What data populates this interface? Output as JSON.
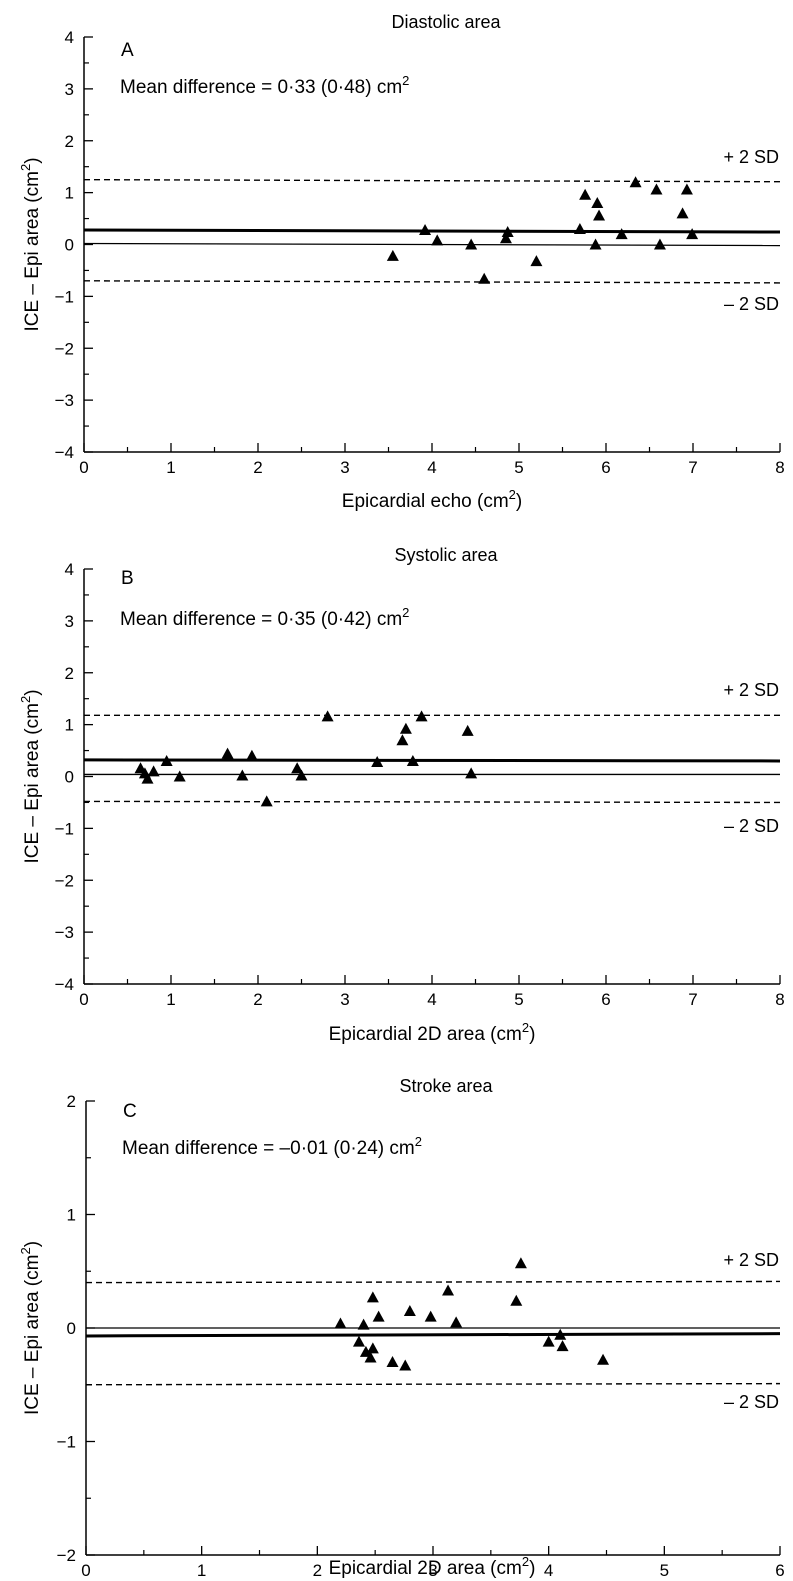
{
  "chart_data": [
    {
      "type": "scatter",
      "panel_letter": "A",
      "title": "Diastolic area",
      "annotation": "Mean difference = 0·33 (0·48) cm",
      "annotation_sup": "2",
      "xlabel": "Epicardial echo (cm",
      "xlabel_sup": "2",
      "xlabel_end": ")",
      "ylabel": "ICE – Epi area (cm",
      "ylabel_sup": "2",
      "ylabel_end": ")",
      "xlim": [
        0,
        8
      ],
      "ylim": [
        -4,
        4
      ],
      "xticks": [
        0,
        1,
        2,
        3,
        4,
        5,
        6,
        7,
        8
      ],
      "yticks": [
        -4,
        -3,
        -2,
        -1,
        0,
        1,
        2,
        3,
        4
      ],
      "x_tick_labels": [
        "0",
        "1",
        "2",
        "3",
        "4",
        "5",
        "6",
        "7",
        "8"
      ],
      "y_tick_labels": [
        "−4",
        "−3",
        "−2",
        "−1",
        "0",
        "1",
        "2",
        "3",
        "4"
      ],
      "mean_line": [
        0.28,
        0.24
      ],
      "zero_line": [
        0.02,
        -0.02
      ],
      "upper_sd_line": [
        1.25,
        1.21
      ],
      "lower_sd_line": [
        -0.7,
        -0.74
      ],
      "upper_sd_label": "+ 2 SD",
      "lower_sd_label": "– 2 SD",
      "points": [
        {
          "x": 3.55,
          "y": -0.22
        },
        {
          "x": 3.92,
          "y": 0.28
        },
        {
          "x": 4.06,
          "y": 0.08
        },
        {
          "x": 4.45,
          "y": 0.0
        },
        {
          "x": 4.6,
          "y": -0.66
        },
        {
          "x": 4.85,
          "y": 0.12
        },
        {
          "x": 4.87,
          "y": 0.24
        },
        {
          "x": 5.2,
          "y": -0.32
        },
        {
          "x": 5.7,
          "y": 0.3
        },
        {
          "x": 5.76,
          "y": 0.96
        },
        {
          "x": 5.88,
          "y": 0.0
        },
        {
          "x": 5.9,
          "y": 0.8
        },
        {
          "x": 5.92,
          "y": 0.56
        },
        {
          "x": 6.18,
          "y": 0.2
        },
        {
          "x": 6.34,
          "y": 1.2
        },
        {
          "x": 6.58,
          "y": 1.06
        },
        {
          "x": 6.62,
          "y": 0.0
        },
        {
          "x": 6.88,
          "y": 0.6
        },
        {
          "x": 6.93,
          "y": 1.06
        },
        {
          "x": 6.99,
          "y": 0.2
        }
      ]
    },
    {
      "type": "scatter",
      "panel_letter": "B",
      "title": "Systolic area",
      "annotation": "Mean difference = 0·35 (0·42) cm",
      "annotation_sup": "2",
      "xlabel": "Epicardial 2D area (cm",
      "xlabel_sup": "2",
      "xlabel_end": ")",
      "ylabel": "ICE – Epi area (cm",
      "ylabel_sup": "2",
      "ylabel_end": ")",
      "xlim": [
        0,
        8
      ],
      "ylim": [
        -4,
        4
      ],
      "xticks": [
        0,
        1,
        2,
        3,
        4,
        5,
        6,
        7,
        8
      ],
      "yticks": [
        -4,
        -3,
        -2,
        -1,
        0,
        1,
        2,
        3,
        4
      ],
      "x_tick_labels": [
        "0",
        "1",
        "2",
        "3",
        "4",
        "5",
        "6",
        "7",
        "8"
      ],
      "y_tick_labels": [
        "−4",
        "−3",
        "−2",
        "−1",
        "0",
        "1",
        "2",
        "3",
        "4"
      ],
      "mean_line": [
        0.32,
        0.3
      ],
      "zero_line": [
        0.04,
        0.04
      ],
      "upper_sd_line": [
        1.18,
        1.18
      ],
      "lower_sd_line": [
        -0.48,
        -0.5
      ],
      "upper_sd_label": "+ 2 SD",
      "lower_sd_label": "– 2 SD",
      "points": [
        {
          "x": 0.65,
          "y": 0.16
        },
        {
          "x": 0.7,
          "y": 0.06
        },
        {
          "x": 0.73,
          "y": -0.04
        },
        {
          "x": 0.8,
          "y": 0.1
        },
        {
          "x": 0.95,
          "y": 0.3
        },
        {
          "x": 1.1,
          "y": 0.0
        },
        {
          "x": 1.65,
          "y": 0.44
        },
        {
          "x": 1.66,
          "y": 0.4
        },
        {
          "x": 1.82,
          "y": 0.02
        },
        {
          "x": 1.93,
          "y": 0.4
        },
        {
          "x": 2.1,
          "y": -0.48
        },
        {
          "x": 2.45,
          "y": 0.16
        },
        {
          "x": 2.5,
          "y": 0.02
        },
        {
          "x": 2.8,
          "y": 1.16
        },
        {
          "x": 3.37,
          "y": 0.28
        },
        {
          "x": 3.66,
          "y": 0.7
        },
        {
          "x": 3.7,
          "y": 0.92
        },
        {
          "x": 3.78,
          "y": 0.3
        },
        {
          "x": 3.88,
          "y": 1.16
        },
        {
          "x": 4.41,
          "y": 0.88
        },
        {
          "x": 4.45,
          "y": 0.06
        }
      ]
    },
    {
      "type": "scatter",
      "panel_letter": "C",
      "title": "Stroke area",
      "annotation": "Mean difference = –0·01 (0·24) cm",
      "annotation_sup": "2",
      "xlabel": "Epicardial 2D area (cm",
      "xlabel_sup": "2",
      "xlabel_end": ")",
      "ylabel": "ICE – Epi area (cm",
      "ylabel_sup": "2",
      "ylabel_end": ")",
      "xlim": [
        0,
        6
      ],
      "ylim": [
        -2,
        2
      ],
      "xticks": [
        0,
        1,
        2,
        3,
        4,
        5,
        6
      ],
      "yticks": [
        -2,
        -1,
        0,
        1,
        2
      ],
      "x_tick_labels": [
        "0",
        "1",
        "2",
        "3",
        "4",
        "5",
        "6"
      ],
      "y_tick_labels": [
        "−2",
        "−1",
        "0",
        "1",
        "2"
      ],
      "mean_line": [
        -0.07,
        -0.05
      ],
      "zero_line": [
        0.0,
        0.0
      ],
      "upper_sd_line": [
        0.4,
        0.41
      ],
      "lower_sd_line": [
        -0.5,
        -0.49
      ],
      "upper_sd_label": "+ 2 SD",
      "lower_sd_label": "– 2 SD",
      "points": [
        {
          "x": 2.2,
          "y": 0.04
        },
        {
          "x": 2.36,
          "y": -0.12
        },
        {
          "x": 2.4,
          "y": 0.03
        },
        {
          "x": 2.42,
          "y": -0.21
        },
        {
          "x": 2.46,
          "y": -0.26
        },
        {
          "x": 2.48,
          "y": 0.27
        },
        {
          "x": 2.48,
          "y": -0.18
        },
        {
          "x": 2.53,
          "y": 0.1
        },
        {
          "x": 2.65,
          "y": -0.3
        },
        {
          "x": 2.76,
          "y": -0.33
        },
        {
          "x": 2.8,
          "y": 0.15
        },
        {
          "x": 2.98,
          "y": 0.1
        },
        {
          "x": 3.13,
          "y": 0.33
        },
        {
          "x": 3.2,
          "y": 0.05
        },
        {
          "x": 3.72,
          "y": 0.24
        },
        {
          "x": 3.76,
          "y": 0.57
        },
        {
          "x": 4.0,
          "y": -0.12
        },
        {
          "x": 4.1,
          "y": -0.06
        },
        {
          "x": 4.12,
          "y": -0.16
        },
        {
          "x": 4.47,
          "y": -0.28
        }
      ]
    }
  ]
}
